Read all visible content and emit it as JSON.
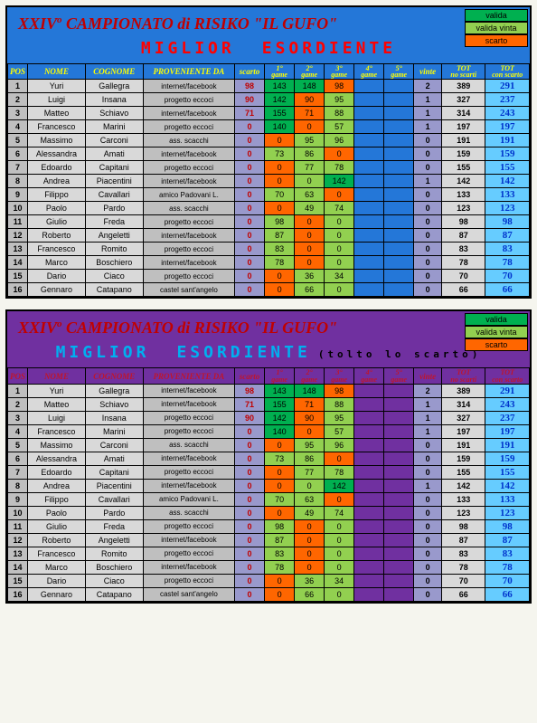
{
  "title_parts": {
    "pre": "XXIV",
    "sup": "o",
    "rest": " CAMPIONATO di RISIKO \"IL GUFO\""
  },
  "subtitle": {
    "l1": "MIGLIOR",
    "l2": "ESORDIENTE"
  },
  "subnote": "(tolto lo scarto)",
  "legend": {
    "valida": "valida",
    "valida_vinta": "valida vinta",
    "scarto": "scarto"
  },
  "headers": {
    "pos": "POS",
    "nome": "NOME",
    "cognome": "COGNOME",
    "prov": "PROVENIENTE DA",
    "scarto": "scarto",
    "g1": "1°\\ngame",
    "g2": "2°\\ngame",
    "g3": "3°\\ngame",
    "g4": "4°\\ngame",
    "g5": "5°\\ngame",
    "vinte": "vinte",
    "tot1": "TOT\\nno scarti",
    "tot2": "TOT\\ncon scarto"
  },
  "colors": {
    "g": "#00b050",
    "l": "#92d050",
    "o": "#ff6600"
  },
  "panels": [
    {
      "cls": "blue",
      "subnote": false,
      "rows": [
        {
          "pos": 1,
          "n": "Yuri",
          "c": "Gallegra",
          "p": "internet/facebook",
          "s": 98,
          "g": [
            [
              143,
              "g"
            ],
            [
              148,
              "g"
            ],
            [
              98,
              "o"
            ],
            [
              "",
              ""
            ],
            [
              "",
              ""
            ]
          ],
          "v": 2,
          "t1": 389,
          "t2": 291
        },
        {
          "pos": 2,
          "n": "Luigi",
          "c": "Insana",
          "p": "progetto eccoci",
          "s": 90,
          "g": [
            [
              142,
              "g"
            ],
            [
              90,
              "o"
            ],
            [
              95,
              "l"
            ],
            [
              "",
              ""
            ],
            [
              "",
              ""
            ]
          ],
          "v": 1,
          "t1": 327,
          "t2": 237
        },
        {
          "pos": 3,
          "n": "Matteo",
          "c": "Schiavo",
          "p": "internet/facebook",
          "s": 71,
          "g": [
            [
              155,
              "g"
            ],
            [
              71,
              "o"
            ],
            [
              88,
              "l"
            ],
            [
              "",
              ""
            ],
            [
              "",
              ""
            ]
          ],
          "v": 1,
          "t1": 314,
          "t2": 243
        },
        {
          "pos": 4,
          "n": "Francesco",
          "c": "Marini",
          "p": "progetto eccoci",
          "s": 0,
          "g": [
            [
              140,
              "g"
            ],
            [
              0,
              "o"
            ],
            [
              57,
              "l"
            ],
            [
              "",
              ""
            ],
            [
              "",
              ""
            ]
          ],
          "v": 1,
          "t1": 197,
          "t2": 197
        },
        {
          "pos": 5,
          "n": "Massimo",
          "c": "Carconi",
          "p": "ass. scacchi",
          "s": 0,
          "g": [
            [
              0,
              "o"
            ],
            [
              95,
              "l"
            ],
            [
              96,
              "l"
            ],
            [
              "",
              ""
            ],
            [
              "",
              ""
            ]
          ],
          "v": 0,
          "t1": 191,
          "t2": 191
        },
        {
          "pos": 6,
          "n": "Alessandra",
          "c": "Amati",
          "p": "internet/facebook",
          "s": 0,
          "g": [
            [
              73,
              "l"
            ],
            [
              86,
              "l"
            ],
            [
              0,
              "o"
            ],
            [
              "",
              ""
            ],
            [
              "",
              ""
            ]
          ],
          "v": 0,
          "t1": 159,
          "t2": 159
        },
        {
          "pos": 7,
          "n": "Edoardo",
          "c": "Capitani",
          "p": "progetto eccoci",
          "s": 0,
          "g": [
            [
              0,
              "o"
            ],
            [
              77,
              "l"
            ],
            [
              78,
              "l"
            ],
            [
              "",
              ""
            ],
            [
              "",
              ""
            ]
          ],
          "v": 0,
          "t1": 155,
          "t2": 155
        },
        {
          "pos": 8,
          "n": "Andrea",
          "c": "Piacentini",
          "p": "internet/facebook",
          "s": 0,
          "g": [
            [
              0,
              "o"
            ],
            [
              0,
              "l"
            ],
            [
              142,
              "g"
            ],
            [
              "",
              ""
            ],
            [
              "",
              ""
            ]
          ],
          "v": 1,
          "t1": 142,
          "t2": 142
        },
        {
          "pos": 9,
          "n": "Filippo",
          "c": "Cavallari",
          "p": "amico Padovani L.",
          "s": 0,
          "g": [
            [
              70,
              "l"
            ],
            [
              63,
              "l"
            ],
            [
              0,
              "o"
            ],
            [
              "",
              ""
            ],
            [
              "",
              ""
            ]
          ],
          "v": 0,
          "t1": 133,
          "t2": 133
        },
        {
          "pos": 10,
          "n": "Paolo",
          "c": "Pardo",
          "p": "ass. scacchi",
          "s": 0,
          "g": [
            [
              0,
              "o"
            ],
            [
              49,
              "l"
            ],
            [
              74,
              "l"
            ],
            [
              "",
              ""
            ],
            [
              "",
              ""
            ]
          ],
          "v": 0,
          "t1": 123,
          "t2": 123
        },
        {
          "pos": 11,
          "n": "Giulio",
          "c": "Freda",
          "p": "progetto eccoci",
          "s": 0,
          "g": [
            [
              98,
              "l"
            ],
            [
              0,
              "o"
            ],
            [
              0,
              "l"
            ],
            [
              "",
              ""
            ],
            [
              "",
              ""
            ]
          ],
          "v": 0,
          "t1": 98,
          "t2": 98
        },
        {
          "pos": 12,
          "n": "Roberto",
          "c": "Angeletti",
          "p": "internet/facebook",
          "s": 0,
          "g": [
            [
              87,
              "l"
            ],
            [
              0,
              "o"
            ],
            [
              0,
              "l"
            ],
            [
              "",
              ""
            ],
            [
              "",
              ""
            ]
          ],
          "v": 0,
          "t1": 87,
          "t2": 87
        },
        {
          "pos": 13,
          "n": "Francesco",
          "c": "Romito",
          "p": "progetto eccoci",
          "s": 0,
          "g": [
            [
              83,
              "l"
            ],
            [
              0,
              "o"
            ],
            [
              0,
              "l"
            ],
            [
              "",
              ""
            ],
            [
              "",
              ""
            ]
          ],
          "v": 0,
          "t1": 83,
          "t2": 83
        },
        {
          "pos": 14,
          "n": "Marco",
          "c": "Boschiero",
          "p": "internet/facebook",
          "s": 0,
          "g": [
            [
              78,
              "l"
            ],
            [
              0,
              "o"
            ],
            [
              0,
              "l"
            ],
            [
              "",
              ""
            ],
            [
              "",
              ""
            ]
          ],
          "v": 0,
          "t1": 78,
          "t2": 78
        },
        {
          "pos": 15,
          "n": "Dario",
          "c": "Ciaco",
          "p": "progetto eccoci",
          "s": 0,
          "g": [
            [
              0,
              "o"
            ],
            [
              36,
              "l"
            ],
            [
              34,
              "l"
            ],
            [
              "",
              ""
            ],
            [
              "",
              ""
            ]
          ],
          "v": 0,
          "t1": 70,
          "t2": 70
        },
        {
          "pos": 16,
          "n": "Gennaro",
          "c": "Catapano",
          "p": "castel sant'angelo",
          "s": 0,
          "g": [
            [
              0,
              "o"
            ],
            [
              66,
              "l"
            ],
            [
              0,
              "l"
            ],
            [
              "",
              ""
            ],
            [
              "",
              ""
            ]
          ],
          "v": 0,
          "t1": 66,
          "t2": 66
        }
      ]
    },
    {
      "cls": "purple",
      "subnote": true,
      "rows": [
        {
          "pos": 1,
          "n": "Yuri",
          "c": "Gallegra",
          "p": "internet/facebook",
          "s": 98,
          "g": [
            [
              143,
              "g"
            ],
            [
              148,
              "g"
            ],
            [
              98,
              "o"
            ],
            [
              "",
              ""
            ],
            [
              "",
              ""
            ]
          ],
          "v": 2,
          "t1": 389,
          "t2": 291
        },
        {
          "pos": 2,
          "n": "Matteo",
          "c": "Schiavo",
          "p": "internet/facebook",
          "s": 71,
          "g": [
            [
              155,
              "g"
            ],
            [
              71,
              "o"
            ],
            [
              88,
              "l"
            ],
            [
              "",
              ""
            ],
            [
              "",
              ""
            ]
          ],
          "v": 1,
          "t1": 314,
          "t2": 243
        },
        {
          "pos": 3,
          "n": "Luigi",
          "c": "Insana",
          "p": "progetto eccoci",
          "s": 90,
          "g": [
            [
              142,
              "g"
            ],
            [
              90,
              "o"
            ],
            [
              95,
              "l"
            ],
            [
              "",
              ""
            ],
            [
              "",
              ""
            ]
          ],
          "v": 1,
          "t1": 327,
          "t2": 237
        },
        {
          "pos": 4,
          "n": "Francesco",
          "c": "Marini",
          "p": "progetto eccoci",
          "s": 0,
          "g": [
            [
              140,
              "g"
            ],
            [
              0,
              "o"
            ],
            [
              57,
              "l"
            ],
            [
              "",
              ""
            ],
            [
              "",
              ""
            ]
          ],
          "v": 1,
          "t1": 197,
          "t2": 197
        },
        {
          "pos": 5,
          "n": "Massimo",
          "c": "Carconi",
          "p": "ass. scacchi",
          "s": 0,
          "g": [
            [
              0,
              "o"
            ],
            [
              95,
              "l"
            ],
            [
              96,
              "l"
            ],
            [
              "",
              ""
            ],
            [
              "",
              ""
            ]
          ],
          "v": 0,
          "t1": 191,
          "t2": 191
        },
        {
          "pos": 6,
          "n": "Alessandra",
          "c": "Amati",
          "p": "internet/facebook",
          "s": 0,
          "g": [
            [
              73,
              "l"
            ],
            [
              86,
              "l"
            ],
            [
              0,
              "o"
            ],
            [
              "",
              ""
            ],
            [
              "",
              ""
            ]
          ],
          "v": 0,
          "t1": 159,
          "t2": 159
        },
        {
          "pos": 7,
          "n": "Edoardo",
          "c": "Capitani",
          "p": "progetto eccoci",
          "s": 0,
          "g": [
            [
              0,
              "o"
            ],
            [
              77,
              "l"
            ],
            [
              78,
              "l"
            ],
            [
              "",
              ""
            ],
            [
              "",
              ""
            ]
          ],
          "v": 0,
          "t1": 155,
          "t2": 155
        },
        {
          "pos": 8,
          "n": "Andrea",
          "c": "Piacentini",
          "p": "internet/facebook",
          "s": 0,
          "g": [
            [
              0,
              "o"
            ],
            [
              0,
              "l"
            ],
            [
              142,
              "g"
            ],
            [
              "",
              ""
            ],
            [
              "",
              ""
            ]
          ],
          "v": 1,
          "t1": 142,
          "t2": 142
        },
        {
          "pos": 9,
          "n": "Filippo",
          "c": "Cavallari",
          "p": "amico Padovani L.",
          "s": 0,
          "g": [
            [
              70,
              "l"
            ],
            [
              63,
              "l"
            ],
            [
              0,
              "o"
            ],
            [
              "",
              ""
            ],
            [
              "",
              ""
            ]
          ],
          "v": 0,
          "t1": 133,
          "t2": 133
        },
        {
          "pos": 10,
          "n": "Paolo",
          "c": "Pardo",
          "p": "ass. scacchi",
          "s": 0,
          "g": [
            [
              0,
              "o"
            ],
            [
              49,
              "l"
            ],
            [
              74,
              "l"
            ],
            [
              "",
              ""
            ],
            [
              "",
              ""
            ]
          ],
          "v": 0,
          "t1": 123,
          "t2": 123
        },
        {
          "pos": 11,
          "n": "Giulio",
          "c": "Freda",
          "p": "progetto eccoci",
          "s": 0,
          "g": [
            [
              98,
              "l"
            ],
            [
              0,
              "o"
            ],
            [
              0,
              "l"
            ],
            [
              "",
              ""
            ],
            [
              "",
              ""
            ]
          ],
          "v": 0,
          "t1": 98,
          "t2": 98
        },
        {
          "pos": 12,
          "n": "Roberto",
          "c": "Angeletti",
          "p": "internet/facebook",
          "s": 0,
          "g": [
            [
              87,
              "l"
            ],
            [
              0,
              "o"
            ],
            [
              0,
              "l"
            ],
            [
              "",
              ""
            ],
            [
              "",
              ""
            ]
          ],
          "v": 0,
          "t1": 87,
          "t2": 87
        },
        {
          "pos": 13,
          "n": "Francesco",
          "c": "Romito",
          "p": "progetto eccoci",
          "s": 0,
          "g": [
            [
              83,
              "l"
            ],
            [
              0,
              "o"
            ],
            [
              0,
              "l"
            ],
            [
              "",
              ""
            ],
            [
              "",
              ""
            ]
          ],
          "v": 0,
          "t1": 83,
          "t2": 83
        },
        {
          "pos": 14,
          "n": "Marco",
          "c": "Boschiero",
          "p": "internet/facebook",
          "s": 0,
          "g": [
            [
              78,
              "l"
            ],
            [
              0,
              "o"
            ],
            [
              0,
              "l"
            ],
            [
              "",
              ""
            ],
            [
              "",
              ""
            ]
          ],
          "v": 0,
          "t1": 78,
          "t2": 78
        },
        {
          "pos": 15,
          "n": "Dario",
          "c": "Ciaco",
          "p": "progetto eccoci",
          "s": 0,
          "g": [
            [
              0,
              "o"
            ],
            [
              36,
              "l"
            ],
            [
              34,
              "l"
            ],
            [
              "",
              ""
            ],
            [
              "",
              ""
            ]
          ],
          "v": 0,
          "t1": 70,
          "t2": 70
        },
        {
          "pos": 16,
          "n": "Gennaro",
          "c": "Catapano",
          "p": "castel sant'angelo",
          "s": 0,
          "g": [
            [
              0,
              "o"
            ],
            [
              66,
              "l"
            ],
            [
              0,
              "l"
            ],
            [
              "",
              ""
            ],
            [
              "",
              ""
            ]
          ],
          "v": 0,
          "t1": 66,
          "t2": 66
        }
      ]
    }
  ]
}
